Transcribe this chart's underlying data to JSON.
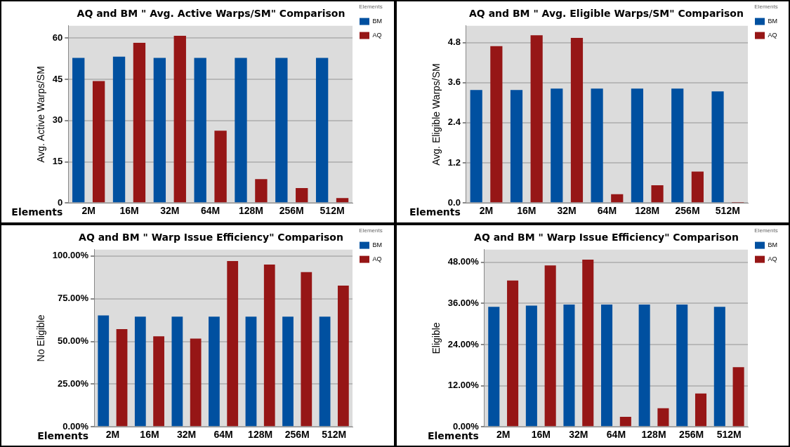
{
  "chart_data": [
    {
      "type": "bar",
      "title": "AQ and BM \" Avg. Active Warps/SM\" Comparison",
      "xlabel": "Elements",
      "ylabel": "Avg. Active Warps/SM",
      "legend_title": "Elements",
      "categories": [
        "2M",
        "16M",
        "32M",
        "64M",
        "128M",
        "256M",
        "512M"
      ],
      "series": [
        {
          "name": "BM",
          "color": "#0050a0",
          "values": [
            52.8,
            53.3,
            52.8,
            52.8,
            52.8,
            52.8,
            52.8
          ]
        },
        {
          "name": "AQ",
          "color": "#961616",
          "values": [
            44.4,
            58.3,
            60.9,
            26.3,
            8.7,
            5.4,
            1.8
          ]
        }
      ],
      "ylim": [
        0,
        64.5
      ],
      "yticks": [
        0,
        15,
        30,
        45,
        60
      ],
      "grid": "y",
      "legend": "top right"
    },
    {
      "type": "bar",
      "title": "AQ and BM \" Avg. Eligible Warps/SM\" Comparison",
      "xlabel": "Elements",
      "ylabel": "Avg. Eligible Warps/SM",
      "legend_title": "Elements",
      "categories": [
        "2M",
        "16M",
        "32M",
        "64M",
        "128M",
        "256M",
        "512M"
      ],
      "series": [
        {
          "name": "BM",
          "color": "#0050a0",
          "values": [
            3.38,
            3.38,
            3.42,
            3.42,
            3.42,
            3.42,
            3.34
          ]
        },
        {
          "name": "AQ",
          "color": "#961616",
          "values": [
            4.69,
            5.02,
            4.94,
            0.26,
            0.53,
            0.94,
            0.01
          ]
        }
      ],
      "ylim": [
        0,
        5.3
      ],
      "yticks": [
        {
          "value": 0,
          "label": "0.0"
        },
        1.2,
        2.4,
        3.6,
        4.8
      ],
      "grid": "y",
      "legend": "top right"
    },
    {
      "type": "bar",
      "title": "AQ and BM \" Warp Issue Efficiency\" Comparison",
      "xlabel": "Elements",
      "ylabel": "No Eligible",
      "legend_title": "Elements",
      "categories": [
        "2M",
        "16M",
        "32M",
        "64M",
        "128M",
        "256M",
        "512M"
      ],
      "series": [
        {
          "name": "BM",
          "color": "#0050a0",
          "values": [
            65.2,
            64.5,
            64.5,
            64.5,
            64.5,
            64.5,
            64.5
          ]
        },
        {
          "name": "AQ",
          "color": "#961616",
          "values": [
            57.2,
            53.0,
            51.6,
            97.0,
            95.0,
            90.6,
            82.7
          ]
        }
      ],
      "ylim": [
        0,
        103.7
      ],
      "yticks": [
        {
          "value": 0,
          "label": "0.00%"
        },
        {
          "value": 25,
          "label": "25.00%"
        },
        {
          "value": 50,
          "label": "50.00%"
        },
        {
          "value": 75,
          "label": "75.00%"
        },
        {
          "value": 100,
          "label": "100.00%"
        }
      ],
      "grid": "y",
      "legend": "top right"
    },
    {
      "type": "bar",
      "title": "AQ and BM \" Warp Issue Efficiency\" Comparison",
      "xlabel": "Elements",
      "ylabel": "Eligible",
      "legend_title": "Elements",
      "categories": [
        "2M",
        "16M",
        "32M",
        "64M",
        "128M",
        "256M",
        "512M"
      ],
      "series": [
        {
          "name": "BM",
          "color": "#0050a0",
          "values": [
            35.0,
            35.4,
            35.7,
            35.7,
            35.7,
            35.7,
            35.0
          ]
        },
        {
          "name": "AQ",
          "color": "#961616",
          "values": [
            42.7,
            47.1,
            48.8,
            2.9,
            5.4,
            9.7,
            17.4
          ]
        }
      ],
      "ylim": [
        0,
        51.7
      ],
      "yticks": [
        {
          "value": 0,
          "label": "0.00%"
        },
        {
          "value": 12,
          "label": "12.00%"
        },
        {
          "value": 24,
          "label": "24.00%"
        },
        {
          "value": 36,
          "label": "36.00%"
        },
        {
          "value": 48,
          "label": "48.00%"
        }
      ],
      "grid": "y",
      "legend": "top right"
    }
  ]
}
